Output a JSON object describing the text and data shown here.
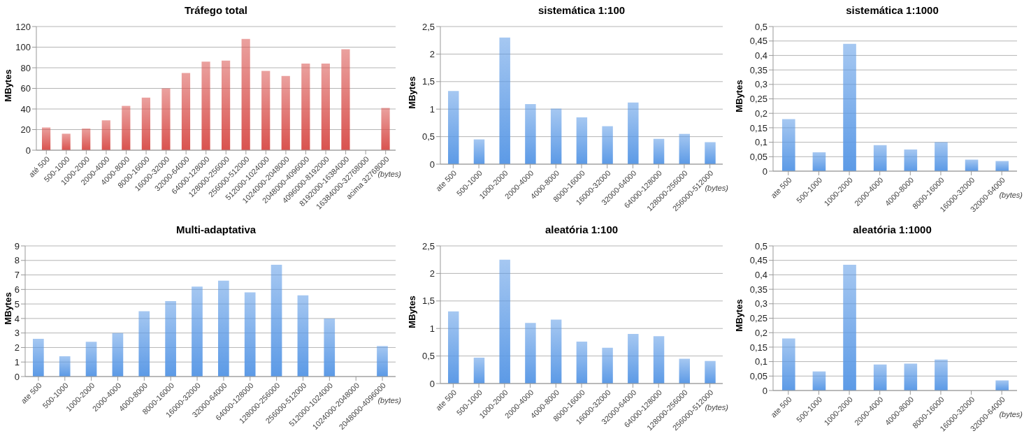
{
  "chart_data": [
    {
      "type": "bar",
      "title": "Tráfego total",
      "ylabel": "MBytes",
      "xlabel": "(bytes)",
      "categories": [
        "até 500",
        "500-1000",
        "1000-2000",
        "2000-4000",
        "4000-8000",
        "8000-16000",
        "16000-32000",
        "32000-64000",
        "64000-128000",
        "128000-256000",
        "256000-512000",
        "512000-1024000",
        "1024000-2048000",
        "2048000-4096000",
        "4096000-8192000",
        "8192000-16384000",
        "16384000-32768000",
        "acima 32768000"
      ],
      "values": [
        22,
        16,
        21,
        29,
        43,
        51,
        60,
        75,
        86,
        87,
        108,
        77,
        72,
        84,
        84,
        98,
        0,
        41
      ],
      "color": "#d9534f",
      "ylim": [
        0,
        120
      ],
      "yticks": [
        0,
        20,
        40,
        60,
        80,
        100,
        120
      ],
      "grid": "y"
    },
    {
      "type": "bar",
      "title": "sistemática 1:100",
      "ylabel": "MBytes",
      "xlabel": "(bytes)",
      "categories": [
        "ate 500",
        "500-1000",
        "1000-2000",
        "2000-4000",
        "4000-8000",
        "8000-16000",
        "16000-32000",
        "32000-64000",
        "64000-128000",
        "128000-256000",
        "256000-512000"
      ],
      "values": [
        1.33,
        0.45,
        2.3,
        1.09,
        1.01,
        0.85,
        0.69,
        1.12,
        0.46,
        0.55,
        0.4
      ],
      "color": "#5c9ae6",
      "ylim": [
        0,
        2.5
      ],
      "yticks": [
        0,
        {
          "value": 0.5,
          "label": "0,5"
        },
        1,
        {
          "value": 1.5,
          "label": "1,5"
        },
        2,
        {
          "value": 2.5,
          "label": "2,5"
        }
      ],
      "grid": "y"
    },
    {
      "type": "bar",
      "title": "sistemática 1:1000",
      "ylabel": "MBytes",
      "xlabel": "(bytes)",
      "categories": [
        "ate 500",
        "500-1000",
        "1000-2000",
        "2000-4000",
        "4000-8000",
        "8000-16000",
        "16000-32000",
        "32000-64000"
      ],
      "values": [
        0.18,
        0.065,
        0.44,
        0.09,
        0.075,
        0.1,
        0.04,
        0.035
      ],
      "color": "#5c9ae6",
      "ylim": [
        0,
        0.5
      ],
      "yticks": [
        0,
        {
          "value": 0.05,
          "label": "0,05"
        },
        {
          "value": 0.1,
          "label": "0,1"
        },
        {
          "value": 0.15,
          "label": "0,15"
        },
        {
          "value": 0.2,
          "label": "0,2"
        },
        {
          "value": 0.25,
          "label": "0,25"
        },
        {
          "value": 0.3,
          "label": "0,3"
        },
        {
          "value": 0.35,
          "label": "0,35"
        },
        {
          "value": 0.4,
          "label": "0,4"
        },
        {
          "value": 0.45,
          "label": "0,45"
        },
        {
          "value": 0.5,
          "label": "0,5"
        }
      ],
      "grid": "y"
    },
    {
      "type": "bar",
      "title": "Multi-adaptativa",
      "ylabel": "MBytes",
      "xlabel": "(bytes)",
      "categories": [
        "ate 500",
        "500-1000",
        "1000-2000",
        "2000-4000",
        "4000-8000",
        "8000-16000",
        "16000-32000",
        "32000-64000",
        "64000-128000",
        "128000-256000",
        "256000-512000",
        "512000-1024000",
        "1024000-2048000",
        "2048000-4096000"
      ],
      "values": [
        2.6,
        1.4,
        2.4,
        3.0,
        4.5,
        5.2,
        6.2,
        6.6,
        5.8,
        7.7,
        5.6,
        4.0,
        0,
        2.1
      ],
      "color": "#5c9ae6",
      "ylim": [
        0,
        9
      ],
      "yticks": [
        0,
        1,
        2,
        3,
        4,
        5,
        6,
        7,
        8,
        9
      ],
      "grid": "y"
    },
    {
      "type": "bar",
      "title": "aleatória 1:100",
      "ylabel": "MBytes",
      "xlabel": "(bytes)",
      "categories": [
        "ate 500",
        "500-1000",
        "1000-2000",
        "2000-4000",
        "4000-8000",
        "8000-16000",
        "16000-32000",
        "32000-64000",
        "64000-128000",
        "128000-256000",
        "256000-512000"
      ],
      "values": [
        1.31,
        0.47,
        2.25,
        1.1,
        1.16,
        0.76,
        0.65,
        0.9,
        0.86,
        0.45,
        0.41
      ],
      "color": "#5c9ae6",
      "ylim": [
        0,
        2.5
      ],
      "yticks": [
        0,
        {
          "value": 0.5,
          "label": "0,5"
        },
        1,
        {
          "value": 1.5,
          "label": "1,5"
        },
        2,
        {
          "value": 2.5,
          "label": "2,5"
        }
      ],
      "grid": "y"
    },
    {
      "type": "bar",
      "title": "aleatória 1:1000",
      "ylabel": "MBytes",
      "xlabel": "(bytes)",
      "categories": [
        "ate 500",
        "500-1000",
        "1000-2000",
        "2000-4000",
        "4000-8000",
        "8000-16000",
        "16000-32000",
        "32000-64000"
      ],
      "values": [
        0.18,
        0.066,
        0.435,
        0.09,
        0.093,
        0.107,
        0,
        0.035
      ],
      "color": "#5c9ae6",
      "ylim": [
        0,
        0.5
      ],
      "yticks": [
        0,
        {
          "value": 0.05,
          "label": "0,05"
        },
        {
          "value": 0.1,
          "label": "0,1"
        },
        {
          "value": 0.15,
          "label": "0,15"
        },
        {
          "value": 0.2,
          "label": "0,2"
        },
        {
          "value": 0.25,
          "label": "0,25"
        },
        {
          "value": 0.3,
          "label": "0,3"
        },
        {
          "value": 0.35,
          "label": "0,35"
        },
        {
          "value": 0.4,
          "label": "0,4"
        },
        {
          "value": 0.45,
          "label": "0,45"
        },
        {
          "value": 0.5,
          "label": "0,5"
        }
      ],
      "grid": "y"
    }
  ]
}
